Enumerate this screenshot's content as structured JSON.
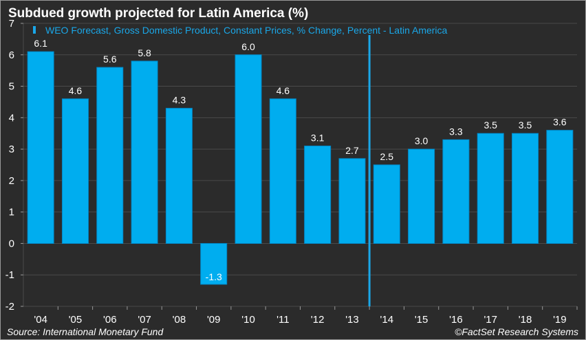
{
  "chart_data": {
    "type": "bar",
    "title": "Subdued growth projected for Latin America (%)",
    "legend": "WEO Forecast, Gross Domestic Product, Constant Prices, % Change, Percent - Latin America",
    "categories": [
      "'04",
      "'05",
      "'06",
      "'07",
      "'08",
      "'09",
      "'10",
      "'11",
      "'12",
      "'13",
      "'14",
      "'15",
      "'16",
      "'17",
      "'18",
      "'19"
    ],
    "values": [
      6.1,
      4.6,
      5.6,
      5.8,
      4.3,
      -1.3,
      6.0,
      4.6,
      3.1,
      2.7,
      2.5,
      3.0,
      3.3,
      3.5,
      3.5,
      3.6
    ],
    "labels": [
      "6.1",
      "4.6",
      "5.6",
      "5.8",
      "4.3",
      "-1.3",
      "6.0",
      "4.6",
      "3.1",
      "2.7",
      "2.5",
      "3.0",
      "3.3",
      "3.5",
      "3.5",
      "3.6"
    ],
    "ylim": [
      -2,
      7
    ],
    "yticks": [
      7,
      6,
      5,
      4,
      3,
      2,
      1,
      0,
      -1,
      -2
    ],
    "ytick_labels": [
      "7",
      "6",
      "5",
      "4",
      "3",
      "2",
      "1",
      "0",
      "-1",
      "-2"
    ],
    "forecast_divider_after": "'13",
    "grid": true,
    "xlabel": "",
    "ylabel": ""
  },
  "colors": {
    "background": "#2b2b2b",
    "bar": "#00adef",
    "bar_edge": "#0088c8",
    "divider": "#1aa7e8",
    "grid": "#4a4a4a",
    "text": "#ffffff",
    "legend": "#1aa7e8"
  },
  "footer": {
    "source": "Source: International Monetary Fund",
    "credit": "©FactSet Research Systems"
  }
}
